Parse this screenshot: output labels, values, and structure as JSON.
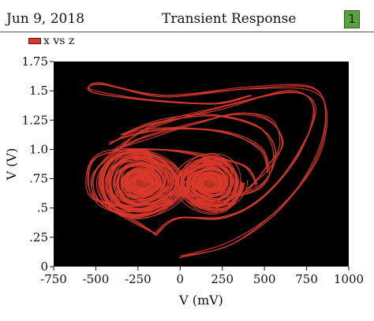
{
  "header": {
    "date": "Jun 9, 2018",
    "title": "Transient Response",
    "badge": "1",
    "badge_color": "#5aa33a"
  },
  "legend": {
    "label": "x vs z",
    "color": "#d8392a"
  },
  "chart_data": {
    "type": "line",
    "title": "Transient Response",
    "xlabel": "V (mV)",
    "ylabel": "V (V)",
    "xlim": [
      -750,
      1000
    ],
    "ylim": [
      0,
      1.75
    ],
    "x_ticks": [
      -750,
      -500,
      -250,
      0,
      250,
      500,
      750,
      1000
    ],
    "x_tick_labels": [
      "-750",
      "-500",
      "-250",
      "0",
      "250",
      "500",
      "750",
      "1000"
    ],
    "y_ticks": [
      0,
      0.25,
      0.5,
      0.75,
      1.0,
      1.25,
      1.5,
      1.75
    ],
    "y_tick_labels": [
      "0",
      ".25",
      ".5",
      ".75",
      "1.0",
      "1.25",
      "1.5",
      "1.75"
    ],
    "background": "#000000",
    "grid": false,
    "series": [
      {
        "name": "x vs z",
        "color": "#d8392a",
        "shape": "chaotic double-scroll attractor",
        "left_scroll_center": [
          -230,
          0.72
        ],
        "right_scroll_center": [
          170,
          0.72
        ],
        "x_range": [
          -550,
          860
        ],
        "y_range": [
          0.08,
          1.57
        ]
      }
    ]
  }
}
